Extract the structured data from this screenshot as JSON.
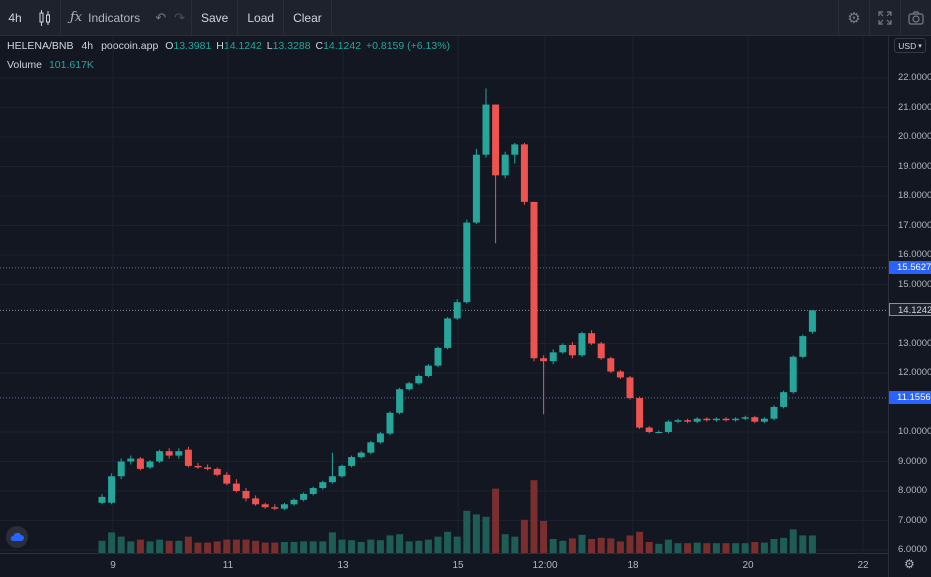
{
  "toolbar": {
    "interval": "4h",
    "indicators_label": "Indicators",
    "save_label": "Save",
    "load_label": "Load",
    "clear_label": "Clear",
    "icons": [
      "candles-icon",
      "fx-icon",
      "undo-icon",
      "redo-icon",
      "settings-icon",
      "fullscreen-icon",
      "camera-icon"
    ]
  },
  "legend": {
    "symbol": "HELENA/BNB",
    "interval": "4h",
    "source": "poocoin.app",
    "o_label": "O",
    "o_value": "13.3981",
    "h_label": "H",
    "h_value": "14.1242",
    "l_label": "L",
    "l_value": "13.3288",
    "c_label": "C",
    "c_value": "14.1242",
    "change": "+0.8159 (+6.13%)",
    "volume_label": "Volume",
    "volume_value": "101.617K"
  },
  "currency": "USD",
  "price_tags": {
    "tag1": "15.5627",
    "tag2": "14.1242",
    "tag3": "11.1556"
  },
  "colors": {
    "up": "#26a69a",
    "down": "#ef5350",
    "tag": "#2962ff",
    "background": "#131722"
  },
  "chart_data": {
    "type": "candlestick",
    "y_axis_labels": [
      "22.0000",
      "21.0000",
      "20.0000",
      "19.0000",
      "18.0000",
      "17.0000",
      "16.0000",
      "15.0000",
      "13.0000",
      "12.0000",
      "10.0000",
      "9.0000",
      "8.0000",
      "7.0000",
      "6.0000"
    ],
    "x_axis_labels": [
      "9",
      "11",
      "13",
      "15",
      "12:00",
      "18",
      "20",
      "22"
    ],
    "ylim": [
      6.0,
      22.3
    ],
    "candles": [
      {
        "o": 7.6,
        "h": 7.9,
        "l": 7.55,
        "c": 7.8
      },
      {
        "o": 7.6,
        "h": 8.6,
        "l": 7.55,
        "c": 8.5
      },
      {
        "o": 8.5,
        "h": 9.1,
        "l": 8.4,
        "c": 9.0
      },
      {
        "o": 9.0,
        "h": 9.2,
        "l": 8.9,
        "c": 9.1
      },
      {
        "o": 9.1,
        "h": 9.15,
        "l": 8.7,
        "c": 8.75
      },
      {
        "o": 8.8,
        "h": 9.05,
        "l": 8.75,
        "c": 9.0
      },
      {
        "o": 9.0,
        "h": 9.4,
        "l": 8.95,
        "c": 9.35
      },
      {
        "o": 9.35,
        "h": 9.45,
        "l": 9.1,
        "c": 9.2
      },
      {
        "o": 9.2,
        "h": 9.45,
        "l": 9.1,
        "c": 9.35
      },
      {
        "o": 9.4,
        "h": 9.5,
        "l": 8.8,
        "c": 8.85
      },
      {
        "o": 8.85,
        "h": 8.95,
        "l": 8.75,
        "c": 8.8
      },
      {
        "o": 8.8,
        "h": 8.9,
        "l": 8.7,
        "c": 8.75
      },
      {
        "o": 8.75,
        "h": 8.8,
        "l": 8.5,
        "c": 8.55
      },
      {
        "o": 8.55,
        "h": 8.65,
        "l": 8.2,
        "c": 8.25
      },
      {
        "o": 8.25,
        "h": 8.4,
        "l": 7.95,
        "c": 8.0
      },
      {
        "o": 8.0,
        "h": 8.1,
        "l": 7.65,
        "c": 7.75
      },
      {
        "o": 7.75,
        "h": 7.85,
        "l": 7.5,
        "c": 7.55
      },
      {
        "o": 7.55,
        "h": 7.6,
        "l": 7.4,
        "c": 7.45
      },
      {
        "o": 7.45,
        "h": 7.55,
        "l": 7.35,
        "c": 7.4
      },
      {
        "o": 7.4,
        "h": 7.6,
        "l": 7.35,
        "c": 7.55
      },
      {
        "o": 7.55,
        "h": 7.75,
        "l": 7.5,
        "c": 7.7
      },
      {
        "o": 7.7,
        "h": 7.95,
        "l": 7.65,
        "c": 7.9
      },
      {
        "o": 7.9,
        "h": 8.15,
        "l": 7.85,
        "c": 8.1
      },
      {
        "o": 8.1,
        "h": 8.35,
        "l": 8.05,
        "c": 8.3
      },
      {
        "o": 8.3,
        "h": 9.3,
        "l": 8.25,
        "c": 8.5
      },
      {
        "o": 8.5,
        "h": 8.9,
        "l": 8.45,
        "c": 8.85
      },
      {
        "o": 8.85,
        "h": 9.2,
        "l": 8.8,
        "c": 9.15
      },
      {
        "o": 9.15,
        "h": 9.35,
        "l": 9.1,
        "c": 9.3
      },
      {
        "o": 9.3,
        "h": 9.7,
        "l": 9.25,
        "c": 9.65
      },
      {
        "o": 9.65,
        "h": 10.0,
        "l": 9.6,
        "c": 9.95
      },
      {
        "o": 9.95,
        "h": 10.7,
        "l": 9.9,
        "c": 10.65
      },
      {
        "o": 10.65,
        "h": 11.5,
        "l": 10.6,
        "c": 11.45
      },
      {
        "o": 11.45,
        "h": 11.7,
        "l": 11.4,
        "c": 11.65
      },
      {
        "o": 11.65,
        "h": 11.95,
        "l": 11.6,
        "c": 11.9
      },
      {
        "o": 11.9,
        "h": 12.3,
        "l": 11.85,
        "c": 12.25
      },
      {
        "o": 12.25,
        "h": 12.9,
        "l": 12.2,
        "c": 12.85
      },
      {
        "o": 12.85,
        "h": 13.9,
        "l": 12.8,
        "c": 13.85
      },
      {
        "o": 13.85,
        "h": 14.5,
        "l": 13.8,
        "c": 14.4
      },
      {
        "o": 14.4,
        "h": 17.2,
        "l": 14.35,
        "c": 17.1
      },
      {
        "o": 17.1,
        "h": 19.6,
        "l": 17.05,
        "c": 19.4
      },
      {
        "o": 19.4,
        "h": 21.65,
        "l": 19.3,
        "c": 21.1
      },
      {
        "o": 21.1,
        "h": 21.1,
        "l": 16.4,
        "c": 18.7
      },
      {
        "o": 18.7,
        "h": 19.5,
        "l": 18.6,
        "c": 19.4
      },
      {
        "o": 19.4,
        "h": 19.8,
        "l": 19.1,
        "c": 19.75
      },
      {
        "o": 19.75,
        "h": 19.8,
        "l": 17.7,
        "c": 17.8
      },
      {
        "o": 17.8,
        "h": 17.8,
        "l": 12.4,
        "c": 12.5
      },
      {
        "o": 12.5,
        "h": 12.6,
        "l": 10.6,
        "c": 12.4
      },
      {
        "o": 12.4,
        "h": 12.8,
        "l": 12.3,
        "c": 12.7
      },
      {
        "o": 12.7,
        "h": 13.0,
        "l": 12.65,
        "c": 12.95
      },
      {
        "o": 12.95,
        "h": 13.05,
        "l": 12.5,
        "c": 12.6
      },
      {
        "o": 12.6,
        "h": 13.4,
        "l": 12.55,
        "c": 13.35
      },
      {
        "o": 13.35,
        "h": 13.45,
        "l": 12.95,
        "c": 13.0
      },
      {
        "o": 13.0,
        "h": 13.05,
        "l": 12.45,
        "c": 12.5
      },
      {
        "o": 12.5,
        "h": 12.55,
        "l": 12.0,
        "c": 12.05
      },
      {
        "o": 12.05,
        "h": 12.1,
        "l": 11.8,
        "c": 11.85
      },
      {
        "o": 11.85,
        "h": 11.9,
        "l": 11.1,
        "c": 11.15
      },
      {
        "o": 11.15,
        "h": 11.2,
        "l": 10.1,
        "c": 10.15
      },
      {
        "o": 10.15,
        "h": 10.2,
        "l": 9.95,
        "c": 10.0
      },
      {
        "o": 10.0,
        "h": 10.05,
        "l": 9.95,
        "c": 10.0
      },
      {
        "o": 10.0,
        "h": 10.4,
        "l": 9.95,
        "c": 10.35
      },
      {
        "o": 10.35,
        "h": 10.45,
        "l": 10.3,
        "c": 10.4
      },
      {
        "o": 10.4,
        "h": 10.45,
        "l": 10.3,
        "c": 10.35
      },
      {
        "o": 10.35,
        "h": 10.5,
        "l": 10.3,
        "c": 10.45
      },
      {
        "o": 10.45,
        "h": 10.5,
        "l": 10.35,
        "c": 10.4
      },
      {
        "o": 10.4,
        "h": 10.5,
        "l": 10.35,
        "c": 10.45
      },
      {
        "o": 10.45,
        "h": 10.5,
        "l": 10.35,
        "c": 10.4
      },
      {
        "o": 10.4,
        "h": 10.5,
        "l": 10.35,
        "c": 10.45
      },
      {
        "o": 10.45,
        "h": 10.55,
        "l": 10.4,
        "c": 10.5
      },
      {
        "o": 10.5,
        "h": 10.55,
        "l": 10.3,
        "c": 10.35
      },
      {
        "o": 10.35,
        "h": 10.5,
        "l": 10.3,
        "c": 10.45
      },
      {
        "o": 10.45,
        "h": 10.9,
        "l": 10.4,
        "c": 10.85
      },
      {
        "o": 10.85,
        "h": 11.4,
        "l": 10.8,
        "c": 11.35
      },
      {
        "o": 11.35,
        "h": 12.6,
        "l": 11.3,
        "c": 12.55
      },
      {
        "o": 12.55,
        "h": 13.3,
        "l": 12.5,
        "c": 13.25
      },
      {
        "o": 13.3981,
        "h": 14.1242,
        "l": 13.3288,
        "c": 14.1242
      }
    ],
    "volume_max": 100
  }
}
